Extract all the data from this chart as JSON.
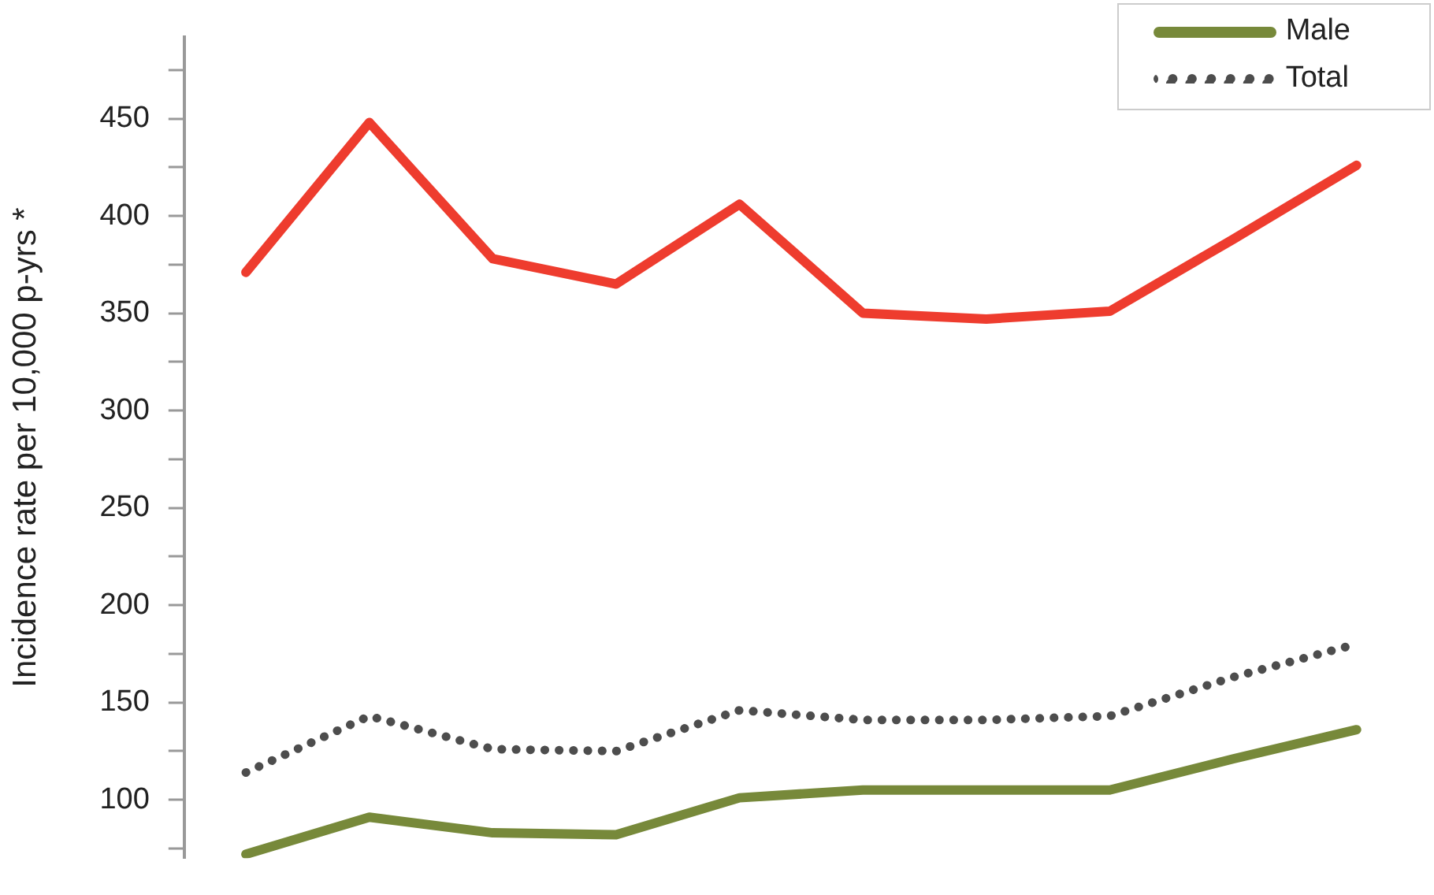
{
  "chart_data": {
    "type": "line",
    "ylabel": "Incidence rate per 10,000 p-yrs *",
    "categories": [
      null,
      null,
      null,
      null,
      null,
      null,
      null,
      null,
      null,
      null
    ],
    "ylim": [
      70,
      492
    ],
    "yticks": [
      {
        "value": 75,
        "label": null
      },
      100,
      {
        "value": 125,
        "label": null
      },
      150,
      {
        "value": 175,
        "label": null
      },
      200,
      {
        "value": 225,
        "label": null
      },
      250,
      {
        "value": 275,
        "label": null
      },
      300,
      {
        "value": 325,
        "label": null
      },
      350,
      {
        "value": 375,
        "label": null
      },
      400,
      {
        "value": 425,
        "label": null
      },
      450,
      {
        "value": 475,
        "label": null
      }
    ],
    "grid": false,
    "legend": "top right",
    "marker": "none",
    "series": [
      {
        "color": "#ee3c2e",
        "line_style": "solid",
        "values": [
          371,
          448,
          378,
          365,
          406,
          350,
          347,
          351,
          388,
          426
        ]
      },
      {
        "name": "Male",
        "color": "#77893a",
        "line_style": "solid",
        "values": [
          72,
          91,
          83,
          82,
          101,
          105,
          105,
          105,
          121,
          136
        ]
      },
      {
        "name": "Total",
        "color": "#4d4d4d",
        "line_style": "dotted",
        "values": [
          114,
          143,
          126,
          125,
          146,
          141,
          141,
          143,
          163,
          180
        ]
      }
    ]
  }
}
